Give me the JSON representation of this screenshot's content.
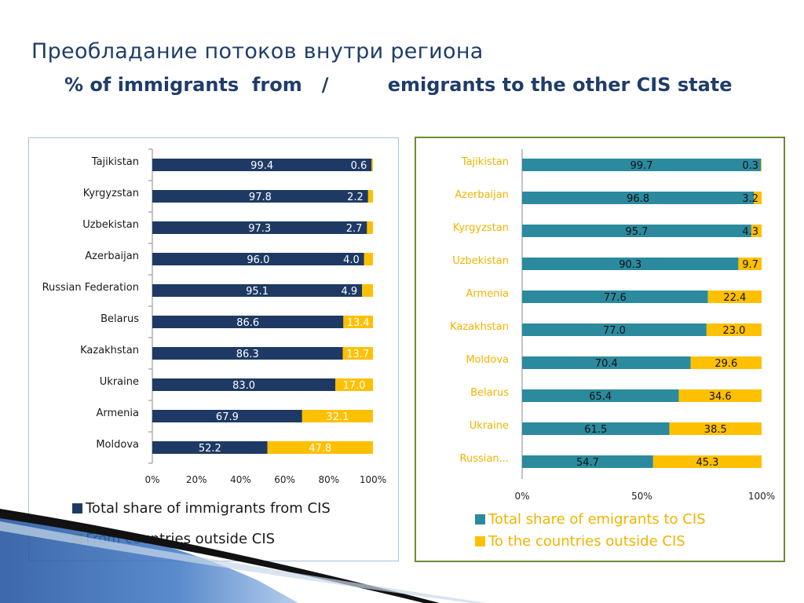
{
  "title": "Преобладание потоков внутри региона",
  "subtitle": "% of immigrants  from   /         emigrants to the other CIS state",
  "colors": {
    "left_primary": "#1e3a64",
    "right_primary": "#2b8a9e",
    "secondary": "#ffc000",
    "right_labels": "#f0b400"
  },
  "legend_left": {
    "primary": "Total share of immigrants from CIS",
    "secondary": "From countries outside CIS"
  },
  "legend_right": {
    "primary": "Total share of emigrants to CIS",
    "secondary": "To the countries outside CIS"
  },
  "chart_data": [
    {
      "type": "bar",
      "orientation": "horizontal",
      "stacked": true,
      "categories": [
        "Tajikistan",
        "Kyrgyzstan",
        "Uzbekistan",
        "Azerbaijan",
        "Russian Federation",
        "Belarus",
        "Kazakhstan",
        "Ukraine",
        "Armenia",
        "Moldova"
      ],
      "series": [
        {
          "name": "Total share of immigrants from CIS",
          "values": [
            99.4,
            97.8,
            97.3,
            96.0,
            95.1,
            86.6,
            86.3,
            83.0,
            67.9,
            52.2
          ],
          "labels": [
            "99.4",
            "97.8",
            "97.3",
            "96.0",
            "95.1",
            "86.6",
            "86.3",
            "83.0",
            "67.9",
            "52.2"
          ]
        },
        {
          "name": "From countries outside CIS",
          "values": [
            0.6,
            2.2,
            2.7,
            4.0,
            4.9,
            13.4,
            13.7,
            17.0,
            32.1,
            47.8
          ],
          "labels": [
            "0.6",
            "2.2",
            "2.7",
            "4.0",
            "4.9",
            "13.4",
            "13.7",
            "17.0",
            "32.1",
            "47.8"
          ]
        }
      ],
      "xlim": [
        0,
        100
      ],
      "xticks": [
        "0%",
        "20%",
        "40%",
        "60%",
        "80%",
        "100%"
      ],
      "legend_position": "bottom"
    },
    {
      "type": "bar",
      "orientation": "horizontal",
      "stacked": true,
      "categories": [
        "Tajikistan",
        "Azerbaijan",
        "Kyrgyzstan",
        "Uzbekistan",
        "Armenia",
        "Kazakhstan",
        "Moldova",
        "Belarus",
        "Ukraine",
        "Russian..."
      ],
      "series": [
        {
          "name": "Total share of emigrants to CIS",
          "values": [
            99.7,
            96.8,
            95.7,
            90.3,
            77.6,
            77.0,
            70.4,
            65.4,
            61.5,
            54.7
          ],
          "labels": [
            "99.7",
            "96.8",
            "95.7",
            "90.3",
            "77.6",
            "77.0",
            "70.4",
            "65.4",
            "61.5",
            "54.7"
          ]
        },
        {
          "name": "To the countries outside CIS",
          "values": [
            0.3,
            3.2,
            4.3,
            9.7,
            22.4,
            23.0,
            29.6,
            34.6,
            38.5,
            45.3
          ],
          "labels": [
            "0.3",
            "3.2",
            "4.3",
            "9.7",
            "22.4",
            "23.0",
            "29.6",
            "34.6",
            "38.5",
            "45.3"
          ]
        }
      ],
      "xlim": [
        0,
        100
      ],
      "xticks": [
        "0%",
        "50%",
        "100%"
      ],
      "legend_position": "bottom"
    }
  ]
}
